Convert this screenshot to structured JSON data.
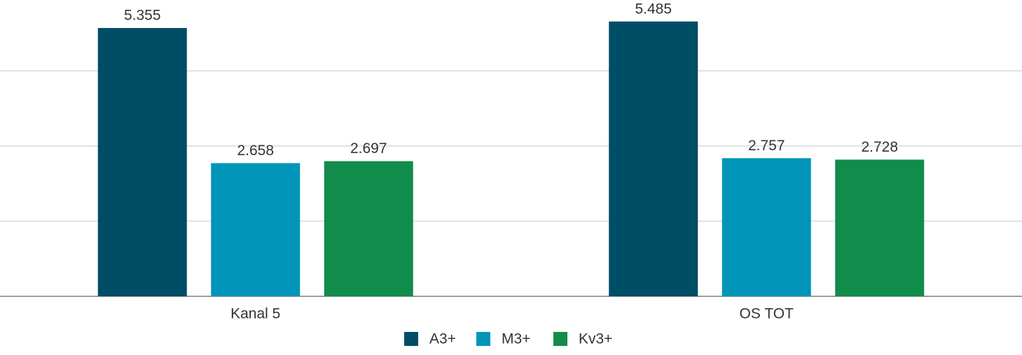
{
  "chart_data": {
    "type": "bar",
    "categories": [
      "Kanal 5",
      "OS TOT"
    ],
    "series": [
      {
        "name": "A3+",
        "color": "#004d66",
        "values": [
          5.355,
          5.485
        ]
      },
      {
        "name": "M3+",
        "color": "#0095b8",
        "values": [
          2.658,
          2.757
        ]
      },
      {
        "name": "Kv3+",
        "color": "#128c4a",
        "values": [
          2.697,
          2.728
        ]
      }
    ],
    "ylim": [
      0,
      5.9
    ],
    "yticks": [
      0,
      1.5,
      3,
      4.5
    ],
    "grid": true,
    "legend": "bottom"
  }
}
